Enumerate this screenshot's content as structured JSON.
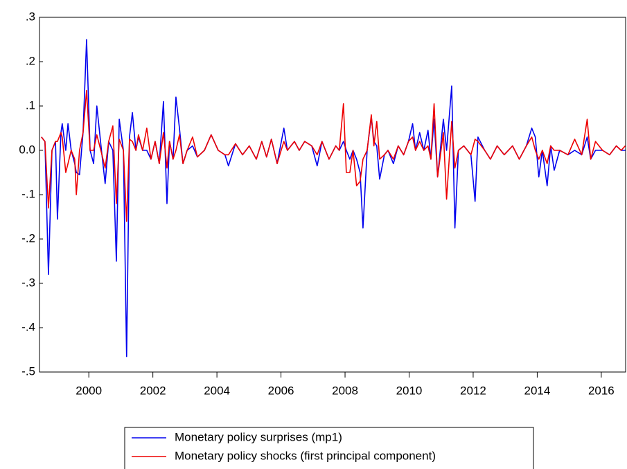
{
  "chart_data": {
    "type": "line",
    "x": [
      1998.52,
      1998.63,
      1998.74,
      1998.85,
      1998.96,
      1999.02,
      1999.13,
      1999.17,
      1999.28,
      1999.35,
      1999.45,
      1999.56,
      1999.61,
      1999.71,
      1999.82,
      1999.93,
      2000.04,
      2000.15,
      2000.25,
      2000.41,
      2000.51,
      2000.62,
      2000.75,
      2000.86,
      2000.95,
      2001.08,
      2001.18,
      2001.27,
      2001.36,
      2001.47,
      2001.55,
      2001.68,
      2001.81,
      2001.94,
      2002.07,
      2002.2,
      2002.33,
      2002.44,
      2002.52,
      2002.63,
      2002.72,
      2002.83,
      2002.94,
      2003.07,
      2003.24,
      2003.39,
      2003.61,
      2003.82,
      2004.04,
      2004.25,
      2004.36,
      2004.58,
      2004.8,
      2005.01,
      2005.23,
      2005.4,
      2005.55,
      2005.7,
      2005.88,
      2006.09,
      2006.2,
      2006.42,
      2006.57,
      2006.74,
      2006.96,
      2007.13,
      2007.28,
      2007.5,
      2007.71,
      2007.82,
      2007.95,
      2008.04,
      2008.15,
      2008.25,
      2008.36,
      2008.47,
      2008.56,
      2008.69,
      2008.82,
      2008.9,
      2008.99,
      2009.08,
      2009.23,
      2009.34,
      2009.51,
      2009.66,
      2009.83,
      2009.98,
      2010.11,
      2010.2,
      2010.33,
      2010.46,
      2010.59,
      2010.68,
      2010.78,
      2010.89,
      2011.07,
      2011.17,
      2011.33,
      2011.43,
      2011.54,
      2011.71,
      2011.93,
      2012.06,
      2012.15,
      2012.36,
      2012.54,
      2012.75,
      2012.97,
      2013.23,
      2013.44,
      2013.66,
      2013.83,
      2013.94,
      2014.05,
      2014.16,
      2014.31,
      2014.42,
      2014.53,
      2014.7,
      2014.96,
      2015.17,
      2015.39,
      2015.56,
      2015.67,
      2015.82,
      2016.04,
      2016.26,
      2016.47,
      2016.62,
      2016.75
    ],
    "series": [
      {
        "name": "Monetary policy surprises (mp1)",
        "color": "#0000ee",
        "values": [
          0.03,
          0.02,
          -0.28,
          0,
          0.02,
          -0.155,
          0.04,
          0.06,
          0,
          0.06,
          0,
          -0.03,
          -0.05,
          -0.055,
          0.04,
          0.25,
          0,
          -0.03,
          0.1,
          -0.01,
          -0.075,
          0.02,
          0,
          -0.25,
          0.07,
          0,
          -0.465,
          0.03,
          0.085,
          0,
          0.03,
          0,
          0,
          -0.02,
          0.02,
          -0.03,
          0.11,
          -0.12,
          0.02,
          -0.02,
          0.12,
          0.05,
          -0.03,
          0,
          0.01,
          -0.015,
          0,
          0.035,
          0,
          -0.01,
          -0.035,
          0.015,
          -0.01,
          0.01,
          -0.02,
          0.02,
          -0.015,
          0.025,
          -0.03,
          0.05,
          0,
          0.02,
          0,
          0.02,
          0.01,
          -0.035,
          0.02,
          -0.02,
          0.01,
          0,
          0.02,
          0,
          -0.02,
          0,
          -0.02,
          -0.05,
          -0.175,
          0,
          0.075,
          0.02,
          0.01,
          -0.065,
          -0.01,
          0,
          -0.03,
          0.01,
          -0.01,
          0.02,
          0.06,
          0,
          0.04,
          0,
          0.045,
          -0.02,
          0.07,
          -0.06,
          0.07,
          0,
          0.145,
          -0.175,
          0,
          0.01,
          -0.01,
          -0.115,
          0.03,
          0,
          -0.02,
          0.01,
          -0.01,
          0.01,
          -0.02,
          0.01,
          0.05,
          0.03,
          -0.06,
          0,
          -0.08,
          0.01,
          -0.045,
          0,
          -0.01,
          0,
          -0.01,
          0.03,
          -0.02,
          0,
          0,
          -0.01,
          0.01,
          0,
          0
        ]
      },
      {
        "name": "Monetary policy shocks (first principal component)",
        "color": "#ee0000",
        "values": [
          0.03,
          0.02,
          -0.13,
          0,
          0.02,
          0.02,
          0.04,
          0.03,
          -0.05,
          -0.03,
          0,
          -0.02,
          -0.1,
          0,
          0.04,
          0.135,
          0,
          0,
          0.035,
          -0.01,
          -0.04,
          0.02,
          0.055,
          -0.12,
          0.025,
          0,
          -0.16,
          0.025,
          0.02,
          0,
          0.035,
          0,
          0.05,
          -0.02,
          0.02,
          -0.03,
          0.04,
          -0.04,
          0.02,
          -0.02,
          0,
          0.035,
          -0.03,
          0,
          0.03,
          -0.015,
          0,
          0.035,
          0,
          -0.01,
          -0.01,
          0.015,
          -0.01,
          0.01,
          -0.02,
          0.02,
          -0.015,
          0.025,
          -0.03,
          0.02,
          0,
          0.02,
          0,
          0.02,
          0.01,
          -0.01,
          0.02,
          -0.02,
          0.01,
          0,
          0.105,
          -0.05,
          -0.05,
          0,
          -0.08,
          -0.07,
          -0.02,
          0,
          0.08,
          0.01,
          0.065,
          -0.02,
          -0.01,
          0,
          -0.02,
          0.01,
          -0.01,
          0.02,
          0.03,
          0,
          0.02,
          0,
          0.01,
          -0.02,
          0.105,
          -0.06,
          0.04,
          -0.11,
          0.065,
          -0.04,
          0,
          0.01,
          -0.01,
          0.025,
          0.02,
          0,
          -0.02,
          0.01,
          -0.01,
          0.01,
          -0.02,
          0.01,
          0.03,
          0,
          -0.02,
          0,
          -0.03,
          0.01,
          0,
          0,
          -0.01,
          0.025,
          -0.01,
          0.07,
          -0.02,
          0.02,
          0,
          -0.01,
          0.01,
          0,
          0.01
        ]
      }
    ],
    "xlim": [
      1998.46,
      2016.76
    ],
    "xticks": [
      2000,
      2002,
      2004,
      2006,
      2008,
      2010,
      2012,
      2014,
      2016
    ],
    "ylim": [
      -0.5,
      0.3
    ],
    "yticks": [
      {
        "value": -0.5,
        "label": "-.5"
      },
      {
        "value": -0.4,
        "label": "-.4"
      },
      {
        "value": -0.3,
        "label": "-.3"
      },
      {
        "value": -0.2,
        "label": "-.2"
      },
      {
        "value": -0.1,
        "label": "-.1"
      },
      {
        "value": 0,
        "label": "0.0"
      },
      {
        "value": 0.1,
        "label": ".1"
      },
      {
        "value": 0.2,
        "label": ".2"
      },
      {
        "value": 0.3,
        "label": ".3"
      }
    ],
    "grid": false
  }
}
